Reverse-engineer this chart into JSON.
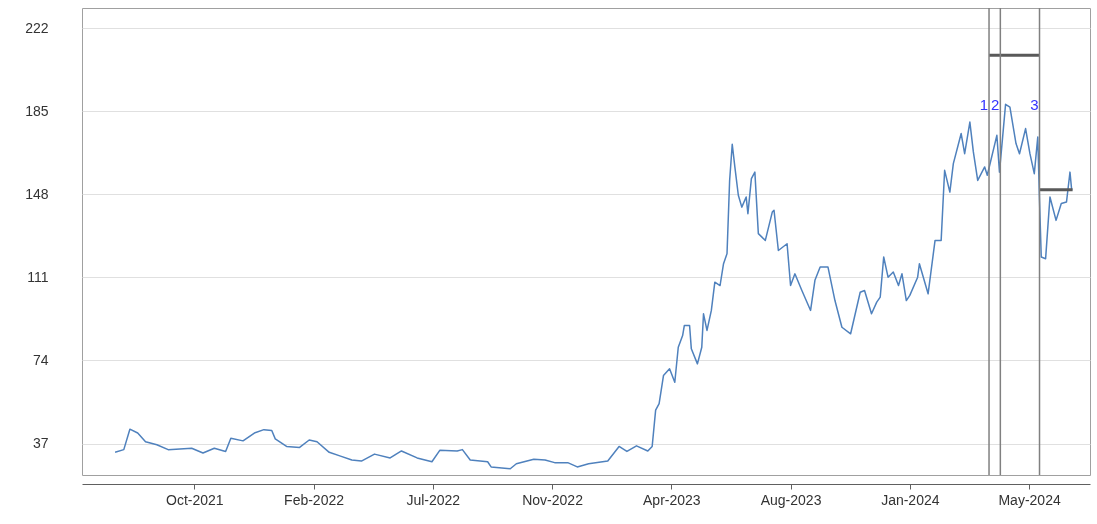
{
  "chart_data": {
    "type": "line",
    "xlim": [
      "2021-05-29",
      "2024-07-30"
    ],
    "ylim": [
      23,
      231
    ],
    "yticks": [
      37,
      74,
      111,
      148,
      185,
      222
    ],
    "xticks": [
      {
        "value": "2021-10-05",
        "label": "Oct-2021"
      },
      {
        "value": "2022-02-19",
        "label": "Feb-2022"
      },
      {
        "value": "2022-07-06",
        "label": "Jul-2022"
      },
      {
        "value": "2022-11-20",
        "label": "Nov-2022"
      },
      {
        "value": "2023-04-06",
        "label": "Apr-2023"
      },
      {
        "value": "2023-08-21",
        "label": "Aug-2023"
      },
      {
        "value": "2024-01-05",
        "label": "Jan-2024"
      },
      {
        "value": "2024-05-21",
        "label": "May-2024"
      }
    ],
    "grid": "y",
    "ref_lines": [
      {
        "axis": "x",
        "value": "2024-04-05",
        "label": "1",
        "color": "#808080"
      },
      {
        "axis": "x",
        "value": "2024-04-18",
        "label": "2",
        "color": "#808080"
      },
      {
        "axis": "x",
        "value": "2024-06-02",
        "label": "3",
        "color": "#808080"
      }
    ],
    "series": [
      {
        "color": "#4f81bd",
        "x": [
          "2021-07-06",
          "2021-07-16",
          "2021-07-23",
          "2021-08-01",
          "2021-08-10",
          "2021-08-23",
          "2021-09-05",
          "2021-10-02",
          "2021-10-15",
          "2021-10-28",
          "2021-11-10",
          "2021-11-16",
          "2021-11-30",
          "2021-12-13",
          "2021-12-24",
          "2022-01-02",
          "2022-01-06",
          "2022-01-19",
          "2022-02-03",
          "2022-02-14",
          "2022-02-23",
          "2022-03-09",
          "2022-03-22",
          "2022-04-04",
          "2022-04-15",
          "2022-04-30",
          "2022-05-18",
          "2022-05-31",
          "2022-06-18",
          "2022-07-05",
          "2022-07-14",
          "2022-08-03",
          "2022-08-09",
          "2022-08-18",
          "2022-09-07",
          "2022-09-11",
          "2022-10-03",
          "2022-10-10",
          "2022-10-30",
          "2022-11-12",
          "2022-11-23",
          "2022-12-08",
          "2022-12-19",
          "2023-01-01",
          "2023-01-23",
          "2023-02-05",
          "2023-02-14",
          "2023-02-25",
          "2023-03-10",
          "2023-03-15",
          "2023-03-19",
          "2023-03-23",
          "2023-03-28",
          "2023-04-04",
          "2023-04-10",
          "2023-04-14",
          "2023-04-19",
          "2023-04-21",
          "2023-04-27",
          "2023-04-29",
          "2023-05-06",
          "2023-05-11",
          "2023-05-13",
          "2023-05-17",
          "2023-05-22",
          "2023-05-26",
          "2023-06-01",
          "2023-06-05",
          "2023-06-09",
          "2023-06-12",
          "2023-06-15",
          "2023-06-18",
          "2023-06-22",
          "2023-06-26",
          "2023-07-01",
          "2023-07-03",
          "2023-07-07",
          "2023-07-11",
          "2023-07-15",
          "2023-07-23",
          "2023-07-31",
          "2023-08-02",
          "2023-08-07",
          "2023-08-17",
          "2023-08-21",
          "2023-08-26",
          "2023-09-03",
          "2023-09-13",
          "2023-09-18",
          "2023-09-24",
          "2023-10-03",
          "2023-10-11",
          "2023-10-19",
          "2023-10-29",
          "2023-11-09",
          "2023-11-14",
          "2023-11-22",
          "2023-11-28",
          "2023-12-02",
          "2023-12-06",
          "2023-12-11",
          "2023-12-17",
          "2023-12-23",
          "2023-12-27",
          "2024-01-01",
          "2024-01-05",
          "2024-01-14",
          "2024-01-16",
          "2024-01-26",
          "2024-02-03",
          "2024-02-10",
          "2024-02-14",
          "2024-02-20",
          "2024-02-24",
          "2024-03-04",
          "2024-03-08",
          "2024-03-14",
          "2024-03-18",
          "2024-03-23",
          "2024-03-31",
          "2024-04-03",
          "2024-04-14",
          "2024-04-17",
          "2024-04-24",
          "2024-04-29",
          "2024-05-06",
          "2024-05-10",
          "2024-05-17",
          "2024-05-22",
          "2024-05-27",
          "2024-05-31",
          "2024-06-02",
          "2024-06-04",
          "2024-06-09",
          "2024-06-14",
          "2024-06-21",
          "2024-06-27",
          "2024-07-03",
          "2024-07-07",
          "2024-07-09"
        ],
        "values": [
          33.1,
          34.3,
          43.4,
          41.7,
          37.8,
          36.5,
          34.3,
          34.9,
          32.8,
          34.9,
          33.5,
          39.4,
          38.2,
          41.7,
          43.2,
          42.8,
          39.1,
          35.7,
          35.3,
          38.6,
          37.8,
          33.1,
          31.4,
          29.7,
          29.2,
          32.3,
          30.6,
          33.7,
          30.6,
          28.9,
          34,
          33.7,
          34.3,
          29.7,
          28.9,
          26.6,
          25.8,
          28,
          30,
          29.7,
          28.5,
          28.5,
          26.6,
          28,
          29.2,
          35.7,
          33.5,
          36,
          33.7,
          35.7,
          51.9,
          54.8,
          67.3,
          70.3,
          64.3,
          79.9,
          85.1,
          89.6,
          89.6,
          79.2,
          72.5,
          79.9,
          94.8,
          87.4,
          96.3,
          108.9,
          107.4,
          117.1,
          121.6,
          154.2,
          170.3,
          160.2,
          147.6,
          142.3,
          146.8,
          139.4,
          155,
          157.9,
          130.5,
          127.5,
          140.1,
          140.9,
          123,
          126,
          107.4,
          112.6,
          105.2,
          96.3,
          109.7,
          115.6,
          115.6,
          100.7,
          88.8,
          85.9,
          104.4,
          105.2,
          94.8,
          100,
          102.2,
          120.1,
          111.1,
          113.4,
          107.4,
          112.6,
          100.7,
          103,
          111.1,
          117.1,
          103.7,
          127.5,
          127.5,
          158.7,
          149,
          161.7,
          175.1,
          166.1,
          180.2,
          166.9,
          154.2,
          160.2,
          156.5,
          174.3,
          157.9,
          188.1,
          186.9,
          170.6,
          166.1,
          177.3,
          166.1,
          157.2,
          173.5,
          145.3,
          120.1,
          119.3,
          146.8,
          136.4,
          143.9,
          144.6,
          157.9,
          149.8
        ]
      },
      {
        "type": "line",
        "color": "#595959",
        "x": [
          "2024-04-05",
          "2024-06-02"
        ],
        "values": [
          210,
          210
        ]
      },
      {
        "type": "line",
        "color": "#595959",
        "x": [
          "2024-06-02",
          "2024-07-10"
        ],
        "values": [
          150,
          150
        ]
      }
    ]
  }
}
